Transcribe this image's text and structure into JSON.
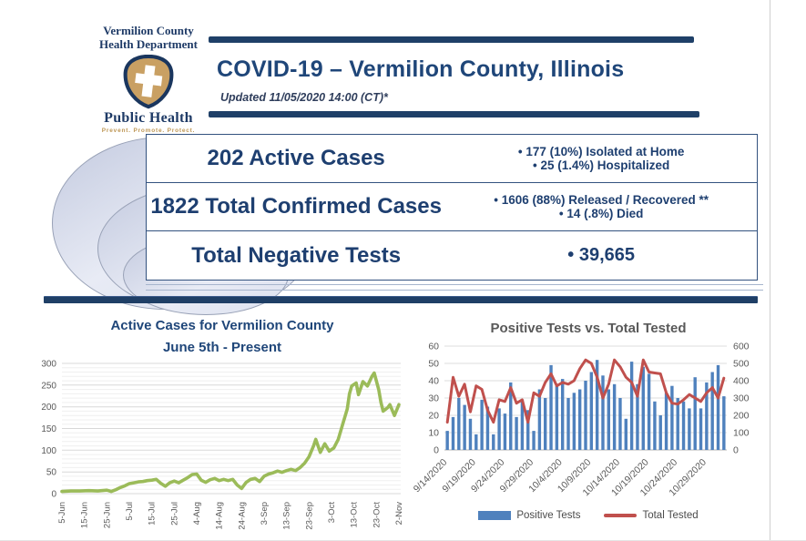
{
  "header": {
    "org_name_line1": "Vermilion County",
    "org_name_line2": "Health Department",
    "logo_label": "Public Health",
    "logo_motto": "Prevent. Promote. Protect.",
    "title": "COVID-19 – Vermilion County, Illinois",
    "updated": "Updated 11/05/2020 14:00 (CT)*"
  },
  "stats": {
    "rows": [
      {
        "label": "202 Active Cases",
        "bullets": [
          "177 (10%) Isolated at Home",
          "25 (1.4%) Hospitalized"
        ]
      },
      {
        "label": "1822 Total Confirmed Cases",
        "bullets": [
          "1606 (88%) Released / Recovered **",
          "14 (.8%) Died"
        ]
      },
      {
        "label": "Total Negative Tests",
        "bullets": [
          "39,665"
        ]
      }
    ]
  },
  "colors": {
    "navy": "#1F4068",
    "title_text": "#1F4679",
    "stats_text": "#1E3F70",
    "green_line": "#9BBB59",
    "blue_bar": "#4F81BD",
    "red_line": "#C0504D",
    "axis_text": "#595959",
    "shield_fill": "#C9A063",
    "shield_stroke": "#1A365E"
  },
  "chart_data": [
    {
      "type": "line",
      "title": "Active Cases for Vermilion County",
      "subtitle": "June 5th - Present",
      "ylim": [
        0,
        300
      ],
      "yticks": [
        0,
        50,
        100,
        150,
        200,
        250,
        300
      ],
      "grid": "minor every 10, major every 50",
      "x_tick_labels": [
        "5-Jun",
        "15-Jun",
        "25-Jun",
        "5-Jul",
        "15-Jul",
        "25-Jul",
        "4-Aug",
        "14-Aug",
        "24-Aug",
        "3-Sep",
        "13-Sep",
        "23-Sep",
        "3-Oct",
        "13-Oct",
        "23-Oct",
        "2-Nov"
      ],
      "x_tick_day_step": 10,
      "x_domain_days": [
        0,
        150
      ],
      "series": [
        {
          "name": "Active Cases",
          "color": "#9BBB59",
          "points": [
            [
              0,
              5
            ],
            [
              4,
              6
            ],
            [
              8,
              6
            ],
            [
              12,
              7
            ],
            [
              16,
              6
            ],
            [
              20,
              8
            ],
            [
              22,
              5
            ],
            [
              24,
              9
            ],
            [
              26,
              14
            ],
            [
              28,
              18
            ],
            [
              30,
              23
            ],
            [
              32,
              25
            ],
            [
              34,
              27
            ],
            [
              36,
              28
            ],
            [
              38,
              30
            ],
            [
              40,
              31
            ],
            [
              42,
              33
            ],
            [
              44,
              24
            ],
            [
              46,
              17
            ],
            [
              48,
              25
            ],
            [
              50,
              29
            ],
            [
              52,
              25
            ],
            [
              54,
              31
            ],
            [
              56,
              37
            ],
            [
              58,
              44
            ],
            [
              60,
              45
            ],
            [
              62,
              31
            ],
            [
              64,
              26
            ],
            [
              66,
              32
            ],
            [
              68,
              35
            ],
            [
              70,
              30
            ],
            [
              72,
              33
            ],
            [
              74,
              30
            ],
            [
              76,
              33
            ],
            [
              78,
              20
            ],
            [
              80,
              12
            ],
            [
              82,
              26
            ],
            [
              84,
              33
            ],
            [
              86,
              35
            ],
            [
              88,
              28
            ],
            [
              90,
              40
            ],
            [
              92,
              45
            ],
            [
              94,
              48
            ],
            [
              96,
              52
            ],
            [
              98,
              49
            ],
            [
              100,
              53
            ],
            [
              102,
              56
            ],
            [
              104,
              53
            ],
            [
              106,
              60
            ],
            [
              108,
              70
            ],
            [
              110,
              85
            ],
            [
              112,
              110
            ],
            [
              113,
              125
            ],
            [
              115,
              95
            ],
            [
              117,
              115
            ],
            [
              119,
              98
            ],
            [
              121,
              105
            ],
            [
              123,
              125
            ],
            [
              125,
              160
            ],
            [
              127,
              195
            ],
            [
              128,
              230
            ],
            [
              129,
              248
            ],
            [
              131,
              255
            ],
            [
              132,
              228
            ],
            [
              134,
              258
            ],
            [
              136,
              248
            ],
            [
              138,
              270
            ],
            [
              139,
              278
            ],
            [
              141,
              240
            ],
            [
              142,
              210
            ],
            [
              143,
              190
            ],
            [
              145,
              198
            ],
            [
              146,
              205
            ],
            [
              148,
              180
            ],
            [
              150,
              205
            ]
          ]
        }
      ]
    },
    {
      "type": "bar+line",
      "title": "Positive Tests vs. Total Tested",
      "left_ylim": [
        0,
        60
      ],
      "right_ylim": [
        0,
        600
      ],
      "left_yticks": [
        0,
        10,
        20,
        30,
        40,
        50,
        60
      ],
      "right_yticks": [
        0,
        100,
        200,
        300,
        400,
        500,
        600
      ],
      "x_tick_labels": [
        "9/14/2020",
        "9/19/2020",
        "9/24/2020",
        "9/29/2020",
        "10/4/2020",
        "10/9/2020",
        "10/14/2020",
        "10/19/2020",
        "10/24/2020",
        "10/29/2020"
      ],
      "x_tick_index_step": 5,
      "legend": [
        "Positive Tests",
        "Total Tested"
      ],
      "series": [
        {
          "name": "Positive Tests",
          "type": "bar",
          "axis": "left",
          "color": "#4F81BD",
          "values": [
            11,
            19,
            30,
            26,
            18,
            9,
            29,
            25,
            9,
            24,
            21,
            39,
            19,
            29,
            23,
            11,
            35,
            30,
            49,
            37,
            41,
            30,
            33,
            35,
            40,
            45,
            52,
            43,
            35,
            38,
            30,
            18,
            51,
            38,
            48,
            44,
            28,
            20,
            33,
            37,
            30,
            28,
            24,
            42,
            24,
            39,
            45,
            49,
            31
          ]
        },
        {
          "name": "Total Tested",
          "type": "line",
          "axis": "right",
          "color": "#C0504D",
          "values": [
            160,
            420,
            310,
            380,
            220,
            370,
            350,
            230,
            160,
            290,
            280,
            360,
            270,
            290,
            160,
            330,
            310,
            390,
            440,
            370,
            390,
            380,
            400,
            470,
            520,
            500,
            420,
            300,
            380,
            520,
            480,
            420,
            390,
            310,
            520,
            450,
            445,
            440,
            330,
            270,
            265,
            290,
            320,
            300,
            280,
            330,
            360,
            300,
            415
          ]
        }
      ]
    }
  ]
}
